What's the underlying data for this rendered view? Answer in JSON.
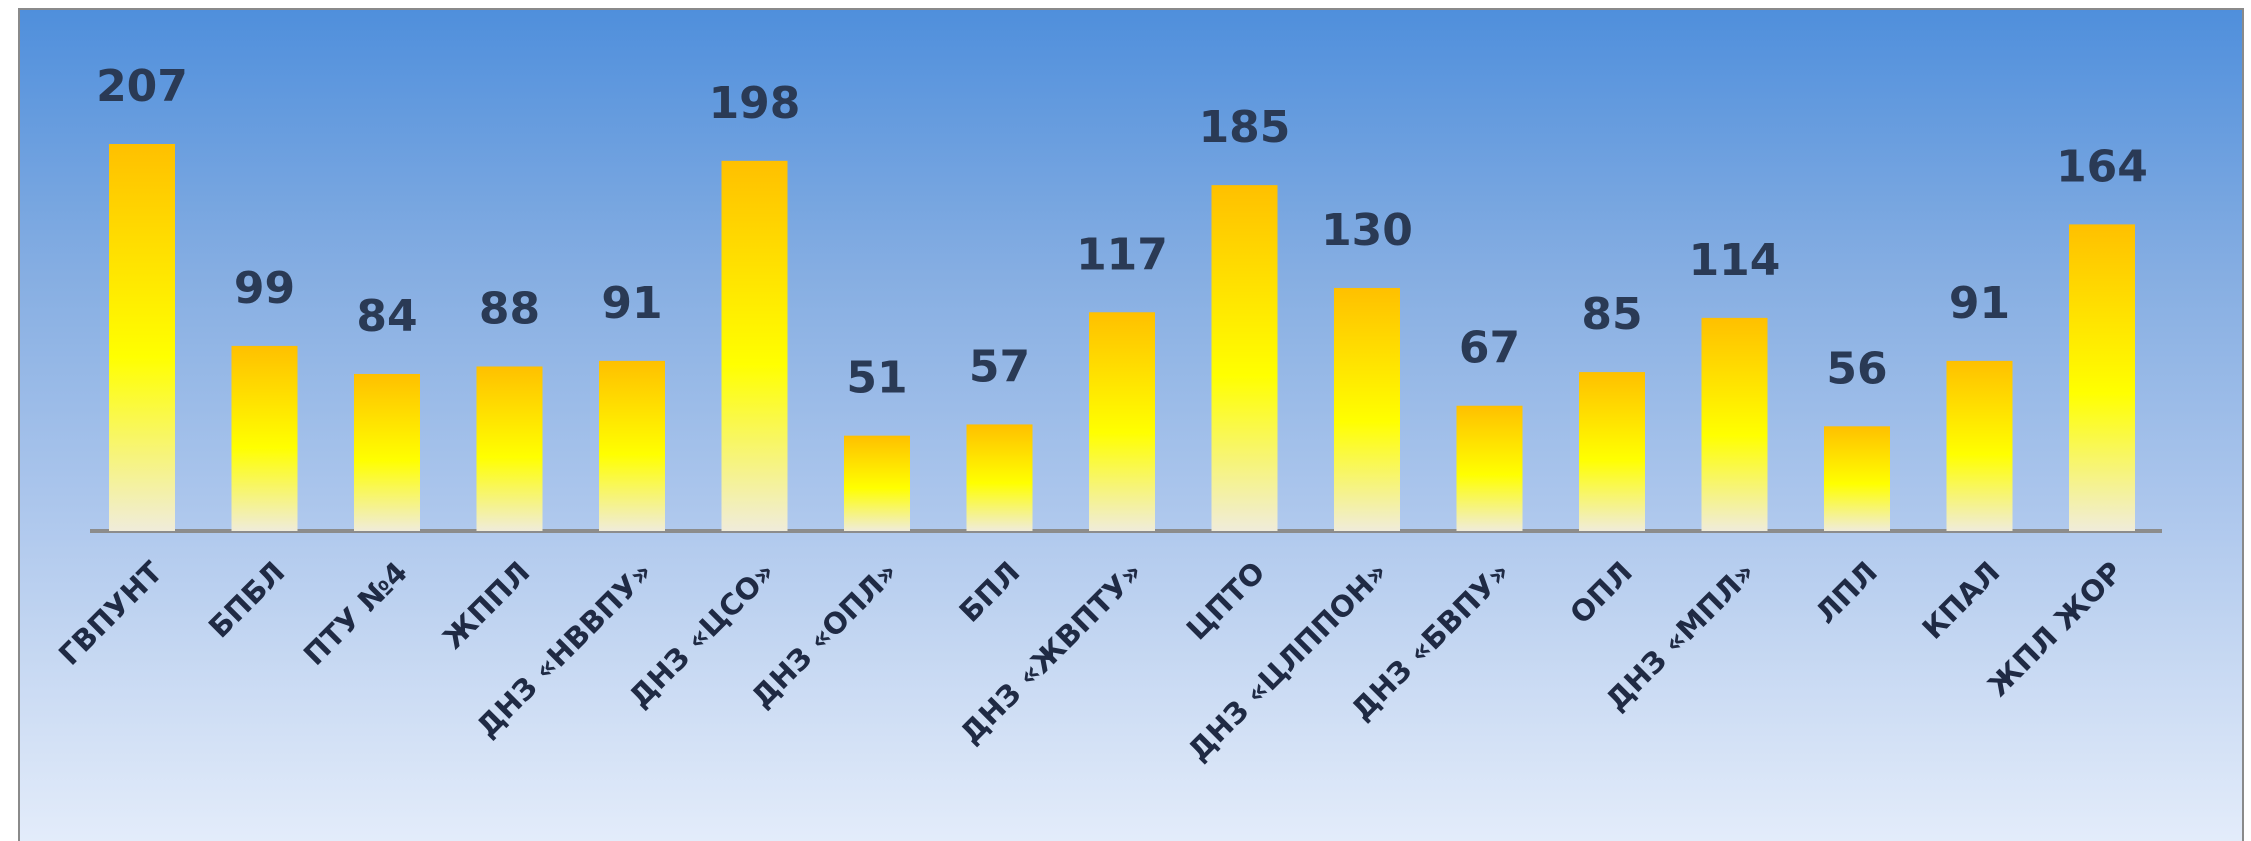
{
  "chart_data": {
    "type": "bar",
    "title": "",
    "xlabel": "",
    "ylabel": "",
    "categories": [
      "ГВПУНТ",
      "БПБЛ",
      "ПТУ №4",
      "ЖППЛ",
      "ДНЗ «НВВПУ»",
      "ДНЗ «ЦСО»",
      "ДНЗ «ОПЛ»",
      "БПЛ",
      "ДНЗ «ЖВПТУ»",
      "ЦПТО",
      "ДНЗ «ЦЛППОН»",
      "ДНЗ «БВПУ»",
      "ОПЛ",
      "ДНЗ «МПЛ»",
      "ЛПЛ",
      "КПАЛ",
      "ЖПЛ ЖОР"
    ],
    "values": [
      207,
      99,
      84,
      88,
      91,
      198,
      51,
      57,
      117,
      185,
      130,
      67,
      85,
      114,
      56,
      91,
      164
    ],
    "ylim": [
      0,
      207
    ],
    "grid": false,
    "legend": "none",
    "colors": {
      "bar_top": "#ffc000",
      "bar_middle": "#ffff00",
      "bar_bottom": "#f0ecda",
      "baseline": "#8c8c8c",
      "value_text": "#2a3a55",
      "category_text": "#1f2a44"
    }
  }
}
